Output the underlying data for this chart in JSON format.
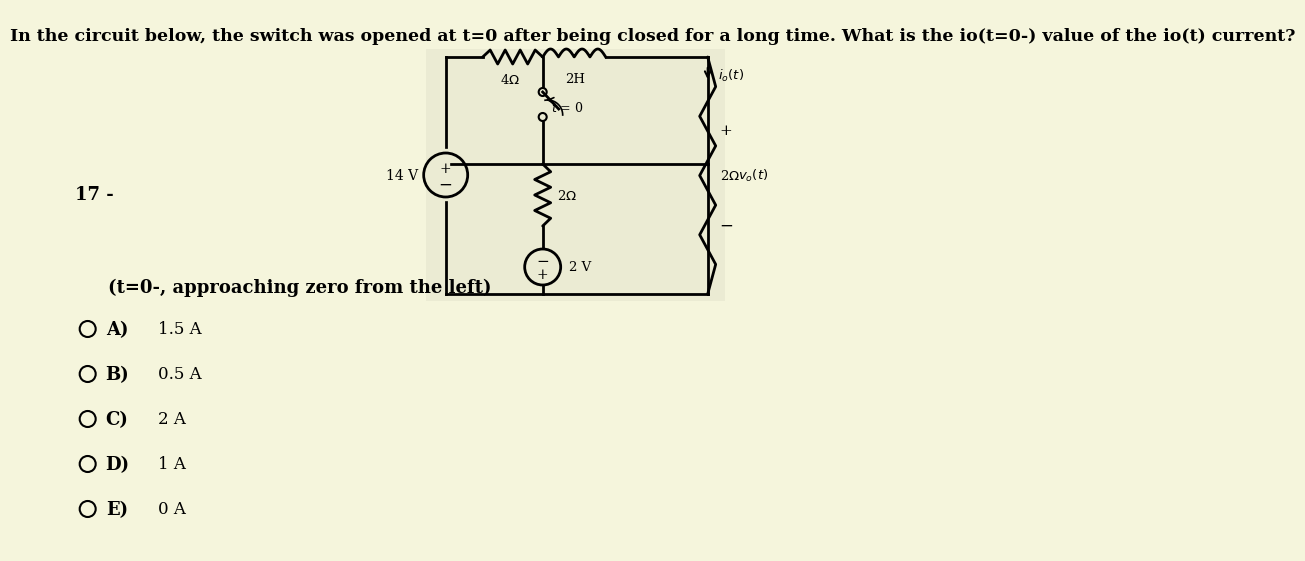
{
  "title": "In the circuit below, the switch was opened at t=0 after being closed for a long time. What is the io(t=0-) value of the io(t) current?",
  "title_fontsize": 12.5,
  "question_number": "17 -",
  "subtitle": "(t=0-, approaching zero from the left)",
  "subtitle_fontsize": 13,
  "options": [
    {
      "label": "A)",
      "value": "1.5 A"
    },
    {
      "label": "B)",
      "value": "0.5 A"
    },
    {
      "label": "C)",
      "value": "2 A"
    },
    {
      "label": "D)",
      "value": "1 A"
    },
    {
      "label": "E)",
      "value": "0 A"
    }
  ],
  "bg_color": "#f5f5dc",
  "circuit_bg": "#ebebd3"
}
